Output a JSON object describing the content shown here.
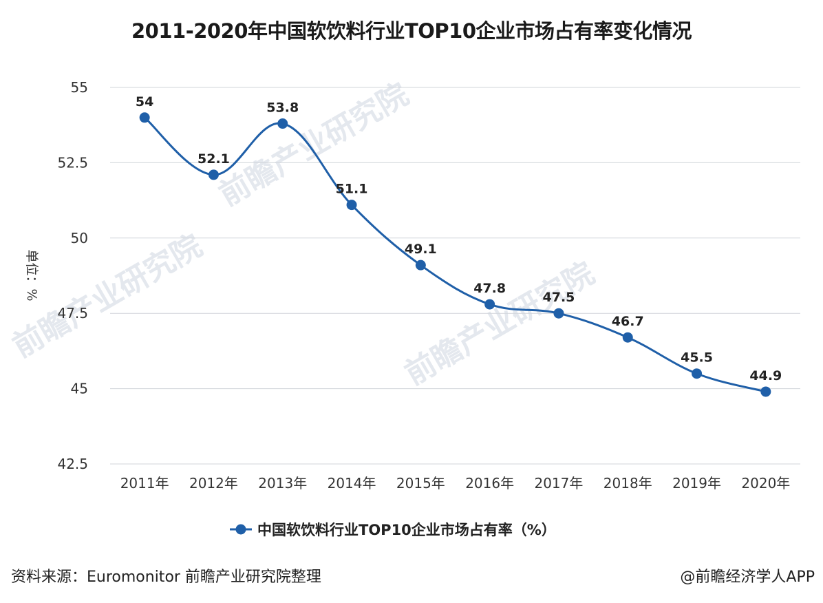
{
  "chart_data": {
    "type": "line",
    "title": "2011-2020年中国软饮料行业TOP10企业市场占有率变化情况",
    "categories": [
      "2011年",
      "2012年",
      "2013年",
      "2014年",
      "2015年",
      "2016年",
      "2017年",
      "2018年",
      "2019年",
      "2020年"
    ],
    "series": [
      {
        "name": "中国软饮料行业TOP10企业市场占有率（%）",
        "values": [
          54,
          52.1,
          53.8,
          51.1,
          49.1,
          47.8,
          47.5,
          46.7,
          45.5,
          44.9
        ]
      }
    ],
    "ylabel": "单位：%",
    "ylim": [
      42.5,
      55
    ],
    "yticks": [
      "42.5",
      "45",
      "47.5",
      "50",
      "52.5",
      "55"
    ],
    "grid": true,
    "legend_position": "bottom",
    "color": "#1f5fa8"
  },
  "footer": {
    "source": "资料来源：Euromonitor 前瞻产业研究院整理",
    "credit": "@前瞻经济学人APP"
  },
  "watermark": "前瞻产业研究院"
}
